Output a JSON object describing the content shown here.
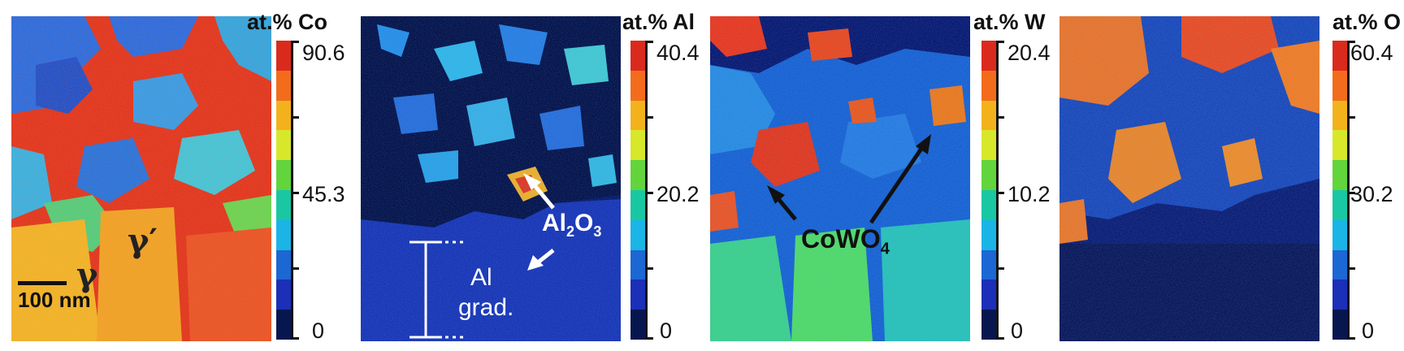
{
  "panels": [
    {
      "title": "at.% Co",
      "ticks": [
        "90.6",
        "45.3",
        "0"
      ],
      "gamma_prime": "γ′",
      "gamma": "γ",
      "scale_bar": "100 nm"
    },
    {
      "title": "at.% Al",
      "ticks": [
        "40.4",
        "20.2",
        "0"
      ],
      "annotation": "Al₂O₃",
      "annotation_base": "Al",
      "annotation_sub1": "2",
      "annotation_mid": "O",
      "annotation_sub2": "3",
      "gradient_line1": "Al",
      "gradient_line2": "grad."
    },
    {
      "title": "at.% W",
      "ticks": [
        "20.4",
        "10.2",
        "0"
      ],
      "annotation_base": "CoWO",
      "annotation_sub": "4"
    },
    {
      "title": "at.% O",
      "ticks": [
        "60.4",
        "30.2",
        "0"
      ]
    }
  ],
  "colormap": [
    "#da2a1d",
    "#f26c1c",
    "#f3b21c",
    "#d7e72a",
    "#62d43c",
    "#19c7a2",
    "#1ab5e6",
    "#1b67d3",
    "#1b2fb8",
    "#081650"
  ]
}
